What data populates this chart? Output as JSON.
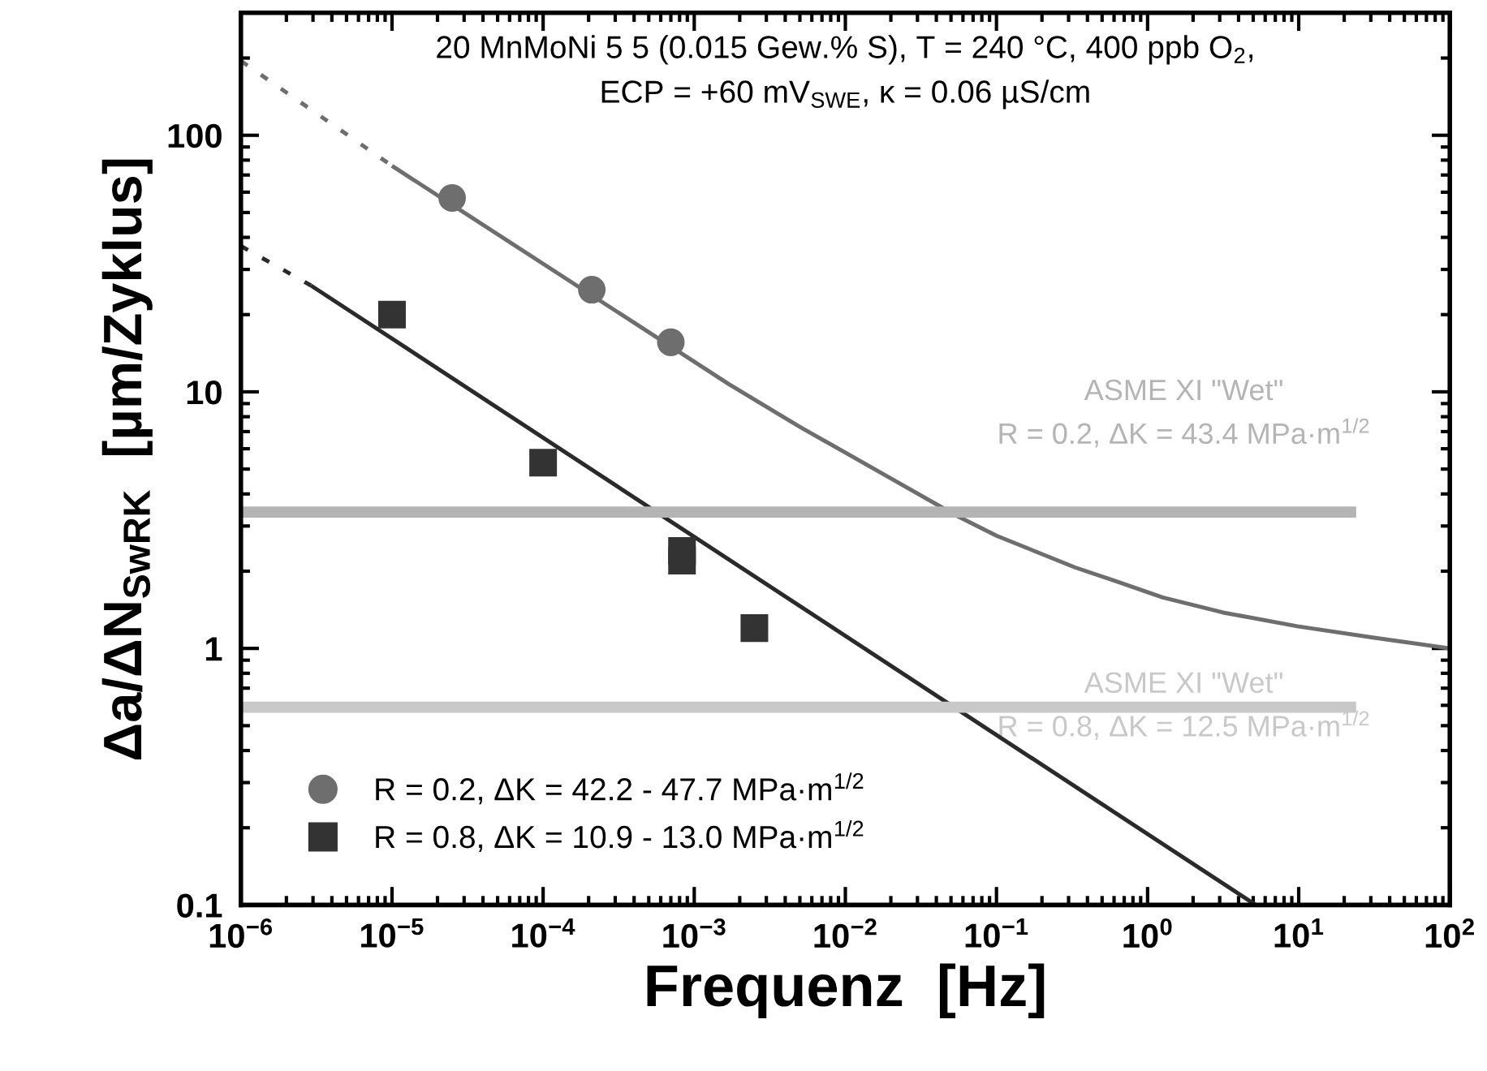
{
  "chart_data": {
    "type": "scatter",
    "xlabel": "Frequenz  [Hz]",
    "ylabel": "Δa/ΔN$_{SwRK}$  [µm/Zyklus]",
    "log": "xy",
    "xlim": [
      1e-06,
      100
    ],
    "ylim": [
      0.1,
      300
    ],
    "xticks": [
      {
        "value": 1e-06,
        "label": "10$^{−6}$"
      },
      {
        "value": 1e-05,
        "label": "10$^{−5}$"
      },
      {
        "value": 0.0001,
        "label": "10$^{−4}$"
      },
      {
        "value": 0.001,
        "label": "10$^{−3}$"
      },
      {
        "value": 0.01,
        "label": "10$^{−2}$"
      },
      {
        "value": 0.1,
        "label": "10$^{−1}$"
      },
      {
        "value": 1,
        "label": "10$^{0}$"
      },
      {
        "value": 10,
        "label": "10$^{1}$"
      },
      {
        "value": 100,
        "label": "10$^{2}$"
      }
    ],
    "yticks": [
      0.1,
      1,
      10,
      100
    ],
    "grid": false,
    "legend": "bottom left",
    "series": [
      {
        "type": "line",
        "color": "#6e6e6e",
        "line_style": "dashed",
        "x": [
          1e-06,
          1e-05
        ],
        "values": [
          195,
          76
        ]
      },
      {
        "type": "line",
        "color": "#6e6e6e",
        "line_style": "solid",
        "x": [
          1e-05,
          0.0017,
          0.005,
          0.02,
          0.054,
          0.1,
          0.33,
          0.63,
          1.26,
          3.16,
          9.8,
          31.6,
          100
        ],
        "values": [
          76,
          10.7,
          7.3,
          4.6,
          3.3,
          2.75,
          2.07,
          1.82,
          1.58,
          1.38,
          1.22,
          1.1,
          1.0
        ]
      },
      {
        "type": "line",
        "color": "#2a2a2a",
        "line_style": "dashed",
        "x": [
          1e-06,
          2.9e-06
        ],
        "values": [
          37,
          26
        ]
      },
      {
        "type": "line",
        "color": "#2a2a2a",
        "line_style": "solid",
        "x": [
          2.9e-06,
          5.2
        ],
        "values": [
          26,
          0.1
        ]
      },
      {
        "type": "line",
        "color": "#b4b4b4",
        "line_style": "solid",
        "x": [
          1e-06,
          24
        ],
        "values": [
          3.4,
          3.4
        ]
      },
      {
        "type": "line",
        "color": "#c8c8c8",
        "line_style": "solid",
        "x": [
          1e-06,
          24
        ],
        "values": [
          0.59,
          0.59
        ]
      },
      {
        "name": "R = 0.2, ΔK = 42.2 - 47.7 MPa·m$^{1/2}$",
        "color": "#6e6e6e",
        "marker": "circle",
        "x": [
          2.5e-05,
          0.00021,
          0.0007
        ],
        "values": [
          57,
          25,
          15.6
        ]
      },
      {
        "name": "R = 0.8, ΔK = 10.9 - 13.0 MPa·m$^{1/2}$",
        "color": "#333333",
        "marker": "square",
        "x": [
          1e-05,
          0.0001,
          0.00083,
          0.00083,
          0.0025
        ],
        "values": [
          20,
          5.3,
          2.4,
          2.2,
          1.2
        ]
      }
    ],
    "annotations": [
      "20 MnMoNi 5 5 (0.015 Gew.% S), T = 240 °C, 400 ppb O$_{2}$,",
      "ECP = +60 mV$_{SWE}$, κ = 0.06 µS/cm",
      "ASME XI \"Wet\"\nR = 0.2, ΔK = 43.4 MPa·m$^{1/2}$",
      "ASME XI \"Wet\"\nR = 0.8, ΔK = 12.5 MPa·m$^{1/2}$"
    ]
  }
}
